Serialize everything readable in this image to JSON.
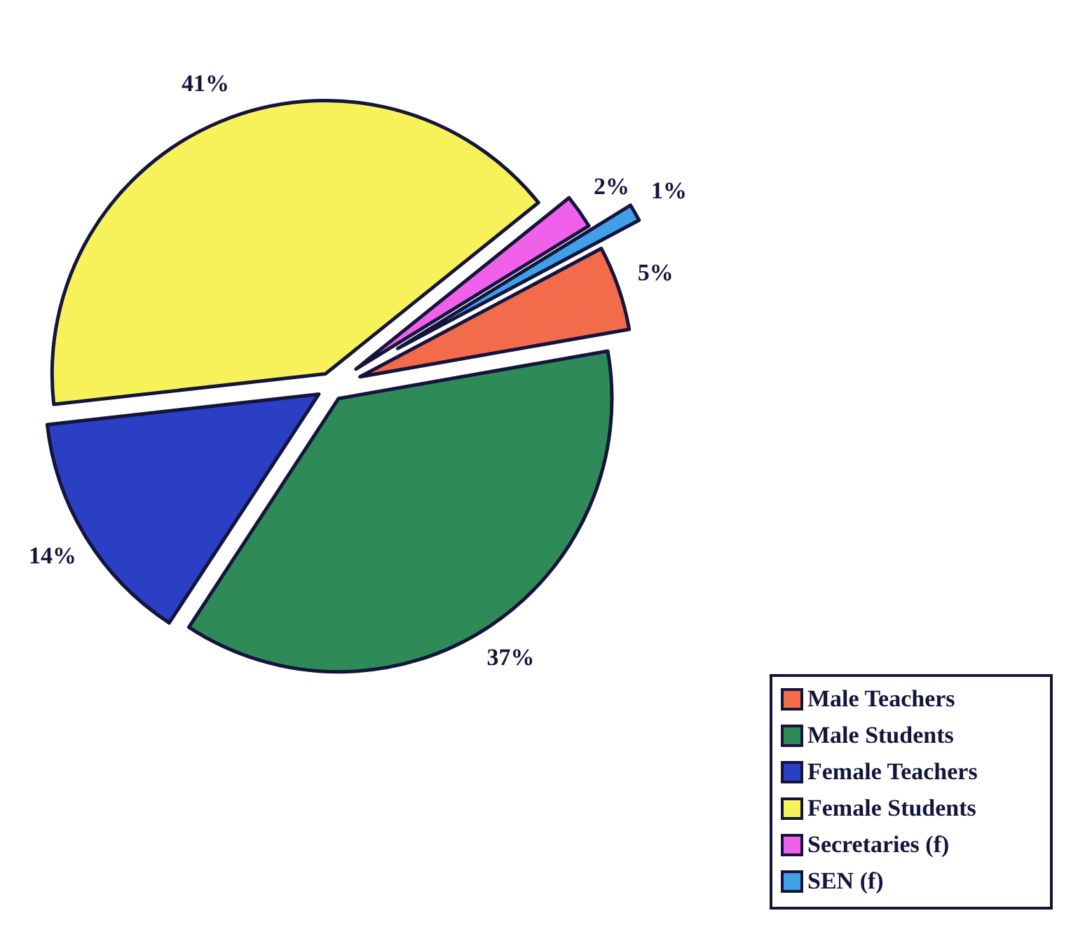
{
  "chart_data": {
    "type": "pie",
    "categories": [
      "Male Teachers",
      "Male Students",
      "Female Teachers",
      "Female Students",
      "Secretaries (f)",
      "SEN (f)"
    ],
    "values": [
      5,
      37,
      14,
      41,
      2,
      1
    ],
    "colors": [
      "#f26b4a",
      "#2e8b57",
      "#2a3fc4",
      "#f7f25a",
      "#f060e8",
      "#3fa0e8"
    ],
    "value_labels": [
      "5%",
      "37%",
      "14%",
      "41%",
      "2%",
      "1%"
    ],
    "legend": "bottom right"
  }
}
